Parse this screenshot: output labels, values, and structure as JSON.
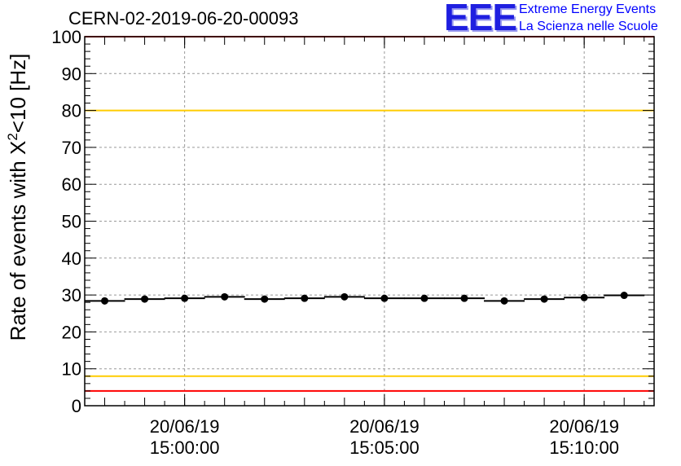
{
  "header": {
    "run_title": "CERN-02-2019-06-20-00093",
    "logo_text": "EEE",
    "brand_line1": "Extreme Energy Events",
    "brand_line2": "La Scienza nelle Scuole"
  },
  "chart_data": {
    "type": "scatter",
    "title": "CERN-02-2019-06-20-00093",
    "ylabel_main": "Rate of events with X",
    "ylabel_sup": "2",
    "ylabel_tail": "<10 [Hz]",
    "xlabel": "",
    "ylim": [
      0,
      100
    ],
    "yticks": [
      0,
      10,
      20,
      30,
      40,
      50,
      60,
      70,
      80,
      90,
      100
    ],
    "xlim": [
      "2019-06-20 14:57:30",
      "2019-06-20 15:11:45"
    ],
    "xticks": [
      {
        "date": "20/06/19",
        "time": "15:00:00",
        "t": "2019-06-20 15:00:00"
      },
      {
        "date": "20/06/19",
        "time": "15:05:00",
        "t": "2019-06-20 15:05:00"
      },
      {
        "date": "20/06/19",
        "time": "15:10:00",
        "t": "2019-06-20 15:10:00"
      }
    ],
    "grid": true,
    "series": [
      {
        "x": [
          "2019-06-20 14:58:00",
          "2019-06-20 14:59:00",
          "2019-06-20 15:00:00",
          "2019-06-20 15:01:00",
          "2019-06-20 15:02:00",
          "2019-06-20 15:03:00",
          "2019-06-20 15:04:00",
          "2019-06-20 15:05:00",
          "2019-06-20 15:06:00",
          "2019-06-20 15:07:00",
          "2019-06-20 15:08:00",
          "2019-06-20 15:09:00",
          "2019-06-20 15:10:00",
          "2019-06-20 15:11:00"
        ],
        "values": [
          28.4,
          28.9,
          29.1,
          29.5,
          28.9,
          29.1,
          29.5,
          29.1,
          29.1,
          29.1,
          28.4,
          28.9,
          29.3,
          29.9
        ]
      }
    ],
    "reference_lines": [
      {
        "y": 100,
        "color": "#ff0000"
      },
      {
        "y": 80,
        "color": "#ffcc00"
      },
      {
        "y": 8,
        "color": "#ffcc00"
      },
      {
        "y": 4,
        "color": "#ff0000"
      }
    ],
    "marker_color": "#000000"
  }
}
